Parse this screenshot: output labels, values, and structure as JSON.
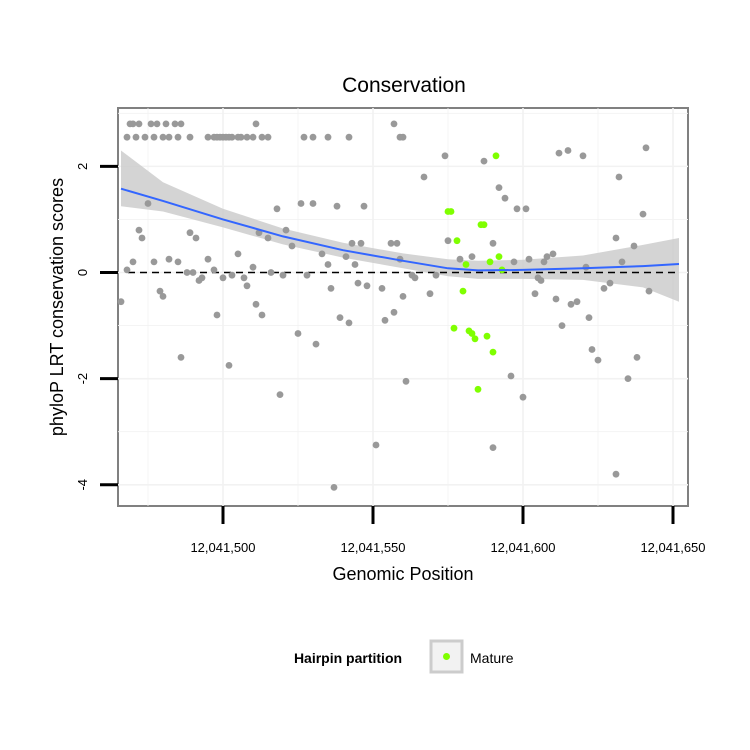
{
  "chart_data": {
    "type": "scatter",
    "title": "Conservation",
    "xlabel": "Genomic Position",
    "ylabel": "phyloP LRT conservation scores",
    "xlim": [
      12041465,
      12041655
    ],
    "ylim": [
      -4.4,
      3.1
    ],
    "x_ticks": [
      {
        "value": 12041500,
        "label": "12,041,500"
      },
      {
        "value": 12041550,
        "label": "12,041,550"
      },
      {
        "value": 12041600,
        "label": "12,041,600"
      },
      {
        "value": 12041650,
        "label": "12,041,650"
      }
    ],
    "y_ticks": [
      {
        "value": 2,
        "label": "2"
      },
      {
        "value": 0,
        "label": "0"
      },
      {
        "value": -2,
        "label": "-2"
      },
      {
        "value": -4,
        "label": "-4"
      }
    ],
    "reference_line": {
      "y": 0,
      "style": "dashed"
    },
    "grid": true,
    "colors": {
      "other": "#999999",
      "mature": "#7fff00",
      "smooth": "#3366ff",
      "band": "#cccccc",
      "panel_border": "#808080",
      "grid": "#f2f2f2"
    },
    "legend": {
      "title": "Hairpin partition",
      "position": "bottom",
      "entries": [
        {
          "label": "Mature",
          "color": "#7fff00"
        }
      ]
    },
    "smooth": {
      "x": [
        12041466,
        12041480,
        12041500,
        12041520,
        12041540,
        12041560,
        12041575,
        12041585,
        12041600,
        12041620,
        12041640,
        12041652
      ],
      "y": [
        1.58,
        1.35,
        1.0,
        0.68,
        0.42,
        0.22,
        0.08,
        0.04,
        0.05,
        0.08,
        0.12,
        0.16
      ],
      "lo": [
        1.25,
        1.15,
        0.85,
        0.53,
        0.28,
        0.08,
        -0.07,
        -0.12,
        -0.12,
        -0.14,
        -0.28,
        -0.55
      ],
      "hi": [
        2.3,
        1.7,
        1.2,
        0.83,
        0.56,
        0.36,
        0.25,
        0.22,
        0.24,
        0.32,
        0.52,
        0.65
      ]
    },
    "series": [
      {
        "name": "Other",
        "color": "#999999",
        "points": [
          [
            12041468,
            2.55
          ],
          [
            12041469,
            2.8
          ],
          [
            12041470,
            2.8
          ],
          [
            12041471,
            2.55
          ],
          [
            12041472,
            2.8
          ],
          [
            12041474,
            2.55
          ],
          [
            12041476,
            2.8
          ],
          [
            12041477,
            2.55
          ],
          [
            12041478,
            2.8
          ],
          [
            12041480,
            2.55
          ],
          [
            12041481,
            2.8
          ],
          [
            12041482,
            2.55
          ],
          [
            12041484,
            2.8
          ],
          [
            12041485,
            2.55
          ],
          [
            12041486,
            2.8
          ],
          [
            12041489,
            2.55
          ],
          [
            12041495,
            2.55
          ],
          [
            12041497,
            2.55
          ],
          [
            12041498,
            2.55
          ],
          [
            12041499,
            2.55
          ],
          [
            12041500,
            2.55
          ],
          [
            12041501,
            2.55
          ],
          [
            12041502,
            2.55
          ],
          [
            12041503,
            2.55
          ],
          [
            12041505,
            2.55
          ],
          [
            12041506,
            2.55
          ],
          [
            12041508,
            2.55
          ],
          [
            12041510,
            2.55
          ],
          [
            12041511,
            2.8
          ],
          [
            12041513,
            2.55
          ],
          [
            12041515,
            2.55
          ],
          [
            12041527,
            2.55
          ],
          [
            12041530,
            2.55
          ],
          [
            12041535,
            2.55
          ],
          [
            12041542,
            2.55
          ],
          [
            12041557,
            2.8
          ],
          [
            12041559,
            2.55
          ],
          [
            12041560,
            2.55
          ],
          [
            12041466,
            -0.55
          ],
          [
            12041468,
            0.05
          ],
          [
            12041470,
            0.2
          ],
          [
            12041472,
            0.8
          ],
          [
            12041473,
            0.65
          ],
          [
            12041475,
            1.3
          ],
          [
            12041477,
            0.2
          ],
          [
            12041479,
            -0.35
          ],
          [
            12041480,
            -0.45
          ],
          [
            12041482,
            0.25
          ],
          [
            12041485,
            0.2
          ],
          [
            12041486,
            -1.6
          ],
          [
            12041488,
            0.0
          ],
          [
            12041489,
            0.75
          ],
          [
            12041490,
            0.0
          ],
          [
            12041491,
            0.65
          ],
          [
            12041492,
            -0.15
          ],
          [
            12041493,
            -0.1
          ],
          [
            12041495,
            0.25
          ],
          [
            12041497,
            0.05
          ],
          [
            12041498,
            -0.8
          ],
          [
            12041500,
            -0.1
          ],
          [
            12041502,
            -1.75
          ],
          [
            12041503,
            -0.05
          ],
          [
            12041505,
            0.35
          ],
          [
            12041507,
            -0.1
          ],
          [
            12041508,
            -0.25
          ],
          [
            12041510,
            0.1
          ],
          [
            12041511,
            -0.6
          ],
          [
            12041512,
            0.75
          ],
          [
            12041513,
            -0.8
          ],
          [
            12041515,
            0.65
          ],
          [
            12041516,
            0.0
          ],
          [
            12041518,
            1.2
          ],
          [
            12041519,
            -2.3
          ],
          [
            12041520,
            -0.05
          ],
          [
            12041521,
            0.8
          ],
          [
            12041523,
            0.5
          ],
          [
            12041525,
            -1.15
          ],
          [
            12041526,
            1.3
          ],
          [
            12041528,
            -0.05
          ],
          [
            12041530,
            1.3
          ],
          [
            12041531,
            -1.35
          ],
          [
            12041533,
            0.35
          ],
          [
            12041535,
            0.15
          ],
          [
            12041536,
            -0.3
          ],
          [
            12041537,
            -4.05
          ],
          [
            12041538,
            1.25
          ],
          [
            12041539,
            -0.85
          ],
          [
            12041541,
            0.3
          ],
          [
            12041542,
            -0.95
          ],
          [
            12041543,
            0.55
          ],
          [
            12041544,
            0.15
          ],
          [
            12041545,
            -0.2
          ],
          [
            12041546,
            0.55
          ],
          [
            12041547,
            1.25
          ],
          [
            12041548,
            -0.25
          ],
          [
            12041551,
            -3.25
          ],
          [
            12041553,
            -0.3
          ],
          [
            12041554,
            -0.9
          ],
          [
            12041556,
            0.55
          ],
          [
            12041557,
            -0.75
          ],
          [
            12041558,
            0.55
          ],
          [
            12041559,
            0.25
          ],
          [
            12041560,
            -0.45
          ],
          [
            12041561,
            -2.05
          ],
          [
            12041563,
            -0.05
          ],
          [
            12041564,
            -0.1
          ],
          [
            12041567,
            1.8
          ],
          [
            12041569,
            -0.4
          ],
          [
            12041571,
            -0.05
          ],
          [
            12041574,
            2.2
          ],
          [
            12041575,
            0.6
          ],
          [
            12041579,
            0.25
          ],
          [
            12041583,
            0.3
          ],
          [
            12041587,
            2.1
          ],
          [
            12041590,
            -3.3
          ],
          [
            12041590,
            0.55
          ],
          [
            12041592,
            1.6
          ],
          [
            12041594,
            1.4
          ],
          [
            12041596,
            -1.95
          ],
          [
            12041597,
            0.2
          ],
          [
            12041598,
            1.2
          ],
          [
            12041600,
            -2.35
          ],
          [
            12041601,
            1.2
          ],
          [
            12041602,
            0.25
          ],
          [
            12041604,
            -0.4
          ],
          [
            12041605,
            -0.1
          ],
          [
            12041606,
            -0.15
          ],
          [
            12041607,
            0.2
          ],
          [
            12041608,
            0.3
          ],
          [
            12041610,
            0.35
          ],
          [
            12041611,
            -0.5
          ],
          [
            12041612,
            2.25
          ],
          [
            12041613,
            -1.0
          ],
          [
            12041615,
            2.3
          ],
          [
            12041616,
            -0.6
          ],
          [
            12041618,
            -0.55
          ],
          [
            12041620,
            2.2
          ],
          [
            12041621,
            0.1
          ],
          [
            12041622,
            -0.85
          ],
          [
            12041623,
            -1.45
          ],
          [
            12041625,
            -1.65
          ],
          [
            12041627,
            -0.3
          ],
          [
            12041629,
            -0.2
          ],
          [
            12041631,
            -3.8
          ],
          [
            12041631,
            0.65
          ],
          [
            12041632,
            1.8
          ],
          [
            12041633,
            0.2
          ],
          [
            12041635,
            -2.0
          ],
          [
            12041637,
            0.5
          ],
          [
            12041638,
            -1.6
          ],
          [
            12041640,
            1.1
          ],
          [
            12041641,
            2.35
          ],
          [
            12041642,
            -0.35
          ]
        ]
      },
      {
        "name": "Mature",
        "color": "#7fff00",
        "points": [
          [
            12041575,
            1.15
          ],
          [
            12041576,
            1.15
          ],
          [
            12041577,
            -1.05
          ],
          [
            12041578,
            0.6
          ],
          [
            12041580,
            -0.35
          ],
          [
            12041581,
            0.15
          ],
          [
            12041582,
            -1.1
          ],
          [
            12041583,
            -1.15
          ],
          [
            12041584,
            -1.25
          ],
          [
            12041585,
            -2.2
          ],
          [
            12041586,
            0.9
          ],
          [
            12041587,
            0.9
          ],
          [
            12041588,
            -1.2
          ],
          [
            12041589,
            0.2
          ],
          [
            12041590,
            -1.5
          ],
          [
            12041591,
            2.2
          ],
          [
            12041592,
            0.3
          ],
          [
            12041593,
            0.05
          ]
        ]
      }
    ]
  }
}
